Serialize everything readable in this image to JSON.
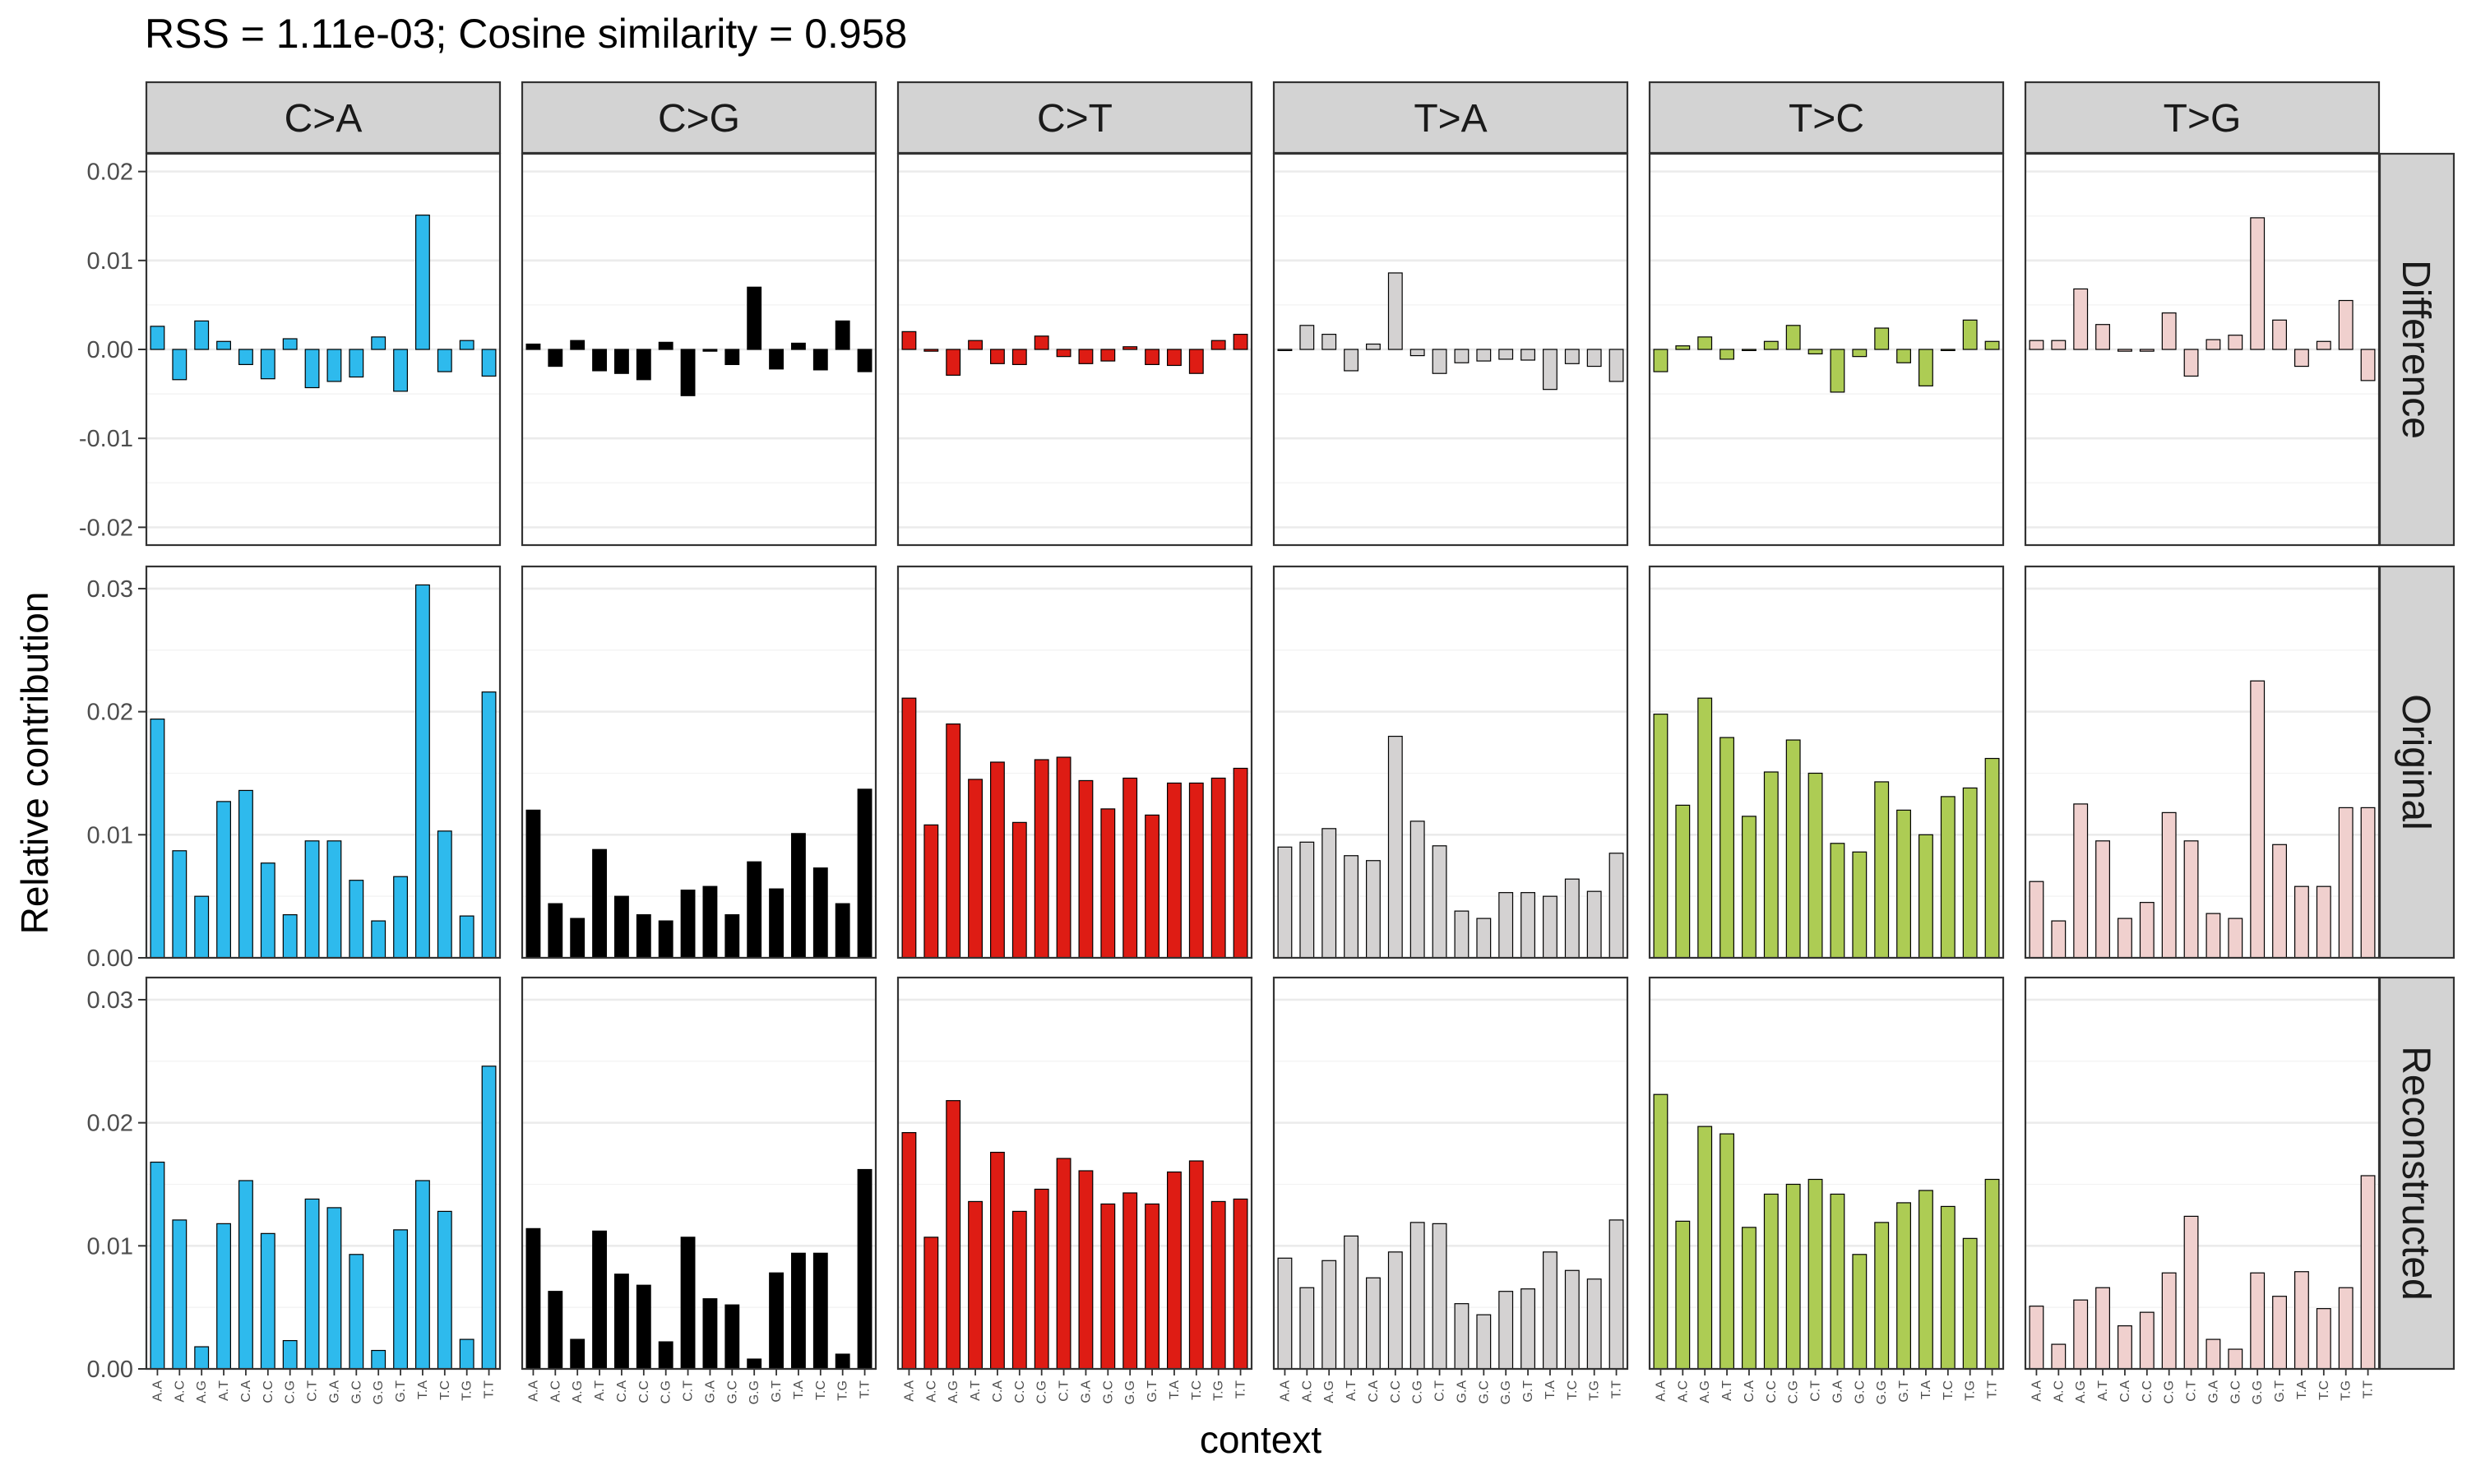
{
  "chart_data": {
    "type": "bar",
    "title": "RSS = 1.11e-03; Cosine similarity = 0.958",
    "xlabel": "context",
    "ylabel": "Relative contribution",
    "grid": true,
    "legend": "none",
    "contexts": [
      "A.A",
      "A.C",
      "A.G",
      "A.T",
      "C.A",
      "C.C",
      "C.G",
      "C.T",
      "G.A",
      "G.C",
      "G.G",
      "G.T",
      "T.A",
      "T.C",
      "T.G",
      "T.T"
    ],
    "substitutions": [
      {
        "label": "C>A",
        "color": "#2EBAED"
      },
      {
        "label": "C>G",
        "color": "#000000"
      },
      {
        "label": "C>T",
        "color": "#DE1C14"
      },
      {
        "label": "T>A",
        "color": "#D4D2D2"
      },
      {
        "label": "T>C",
        "color": "#ADCC54"
      },
      {
        "label": "T>G",
        "color": "#F0D0CE"
      }
    ],
    "rows": [
      {
        "label": "Difference",
        "ylim": [
          -0.022,
          0.022
        ],
        "ticks": [
          0.02,
          0.01,
          0.0,
          -0.01,
          -0.02
        ],
        "tick_labels": [
          "0.02",
          "0.01",
          "0.00",
          "-0.01",
          "-0.02"
        ],
        "values": [
          [
            0.0026,
            -0.0034,
            0.0032,
            0.0009,
            -0.0017,
            -0.0033,
            0.0012,
            -0.0043,
            -0.0036,
            -0.0031,
            0.0014,
            -0.0047,
            0.0151,
            -0.0025,
            0.001,
            -0.003
          ],
          [
            0.0006,
            -0.0019,
            0.001,
            -0.0024,
            -0.0027,
            -0.0034,
            0.0008,
            -0.0052,
            -0.0002,
            -0.0017,
            0.007,
            -0.0022,
            0.0007,
            -0.0023,
            0.0032,
            -0.0025
          ],
          [
            0.002,
            -0.0002,
            -0.0029,
            0.001,
            -0.0016,
            -0.0017,
            0.0015,
            -0.0008,
            -0.0016,
            -0.0013,
            0.0003,
            -0.0017,
            -0.0018,
            -0.0027,
            0.001,
            0.0017
          ],
          [
            0.0,
            0.0027,
            0.0017,
            -0.0024,
            0.0006,
            0.0086,
            -0.0007,
            -0.0027,
            -0.0015,
            -0.0013,
            -0.0011,
            -0.0012,
            -0.0045,
            -0.0016,
            -0.0019,
            -0.0036
          ],
          [
            -0.0025,
            0.0004,
            0.0014,
            -0.0011,
            0.0,
            0.0009,
            0.0027,
            -0.0005,
            -0.0048,
            -0.0008,
            0.0024,
            -0.0015,
            -0.0041,
            -0.0001,
            0.0033,
            0.0009
          ],
          [
            0.001,
            0.001,
            0.0068,
            0.0028,
            -0.0002,
            -0.0002,
            0.0041,
            -0.003,
            0.0011,
            0.0016,
            0.0148,
            0.0033,
            -0.0019,
            0.0009,
            0.0055,
            -0.0035
          ]
        ]
      },
      {
        "label": "Original",
        "ylim": [
          0,
          0.0318
        ],
        "ticks": [
          0.0,
          0.01,
          0.02,
          0.03
        ],
        "tick_labels": [
          "0.00",
          "0.01",
          "0.02",
          "0.03"
        ],
        "values": [
          [
            0.0194,
            0.0087,
            0.005,
            0.0127,
            0.0136,
            0.0077,
            0.0035,
            0.0095,
            0.0095,
            0.0063,
            0.003,
            0.0066,
            0.0303,
            0.0103,
            0.0034,
            0.0216
          ],
          [
            0.012,
            0.0044,
            0.0032,
            0.0088,
            0.005,
            0.0035,
            0.003,
            0.0055,
            0.0058,
            0.0035,
            0.0078,
            0.0056,
            0.0101,
            0.0073,
            0.0044,
            0.0137
          ],
          [
            0.0211,
            0.0108,
            0.019,
            0.0145,
            0.0159,
            0.011,
            0.0161,
            0.0163,
            0.0144,
            0.0121,
            0.0146,
            0.0116,
            0.0142,
            0.0142,
            0.0146,
            0.0154
          ],
          [
            0.009,
            0.0094,
            0.0105,
            0.0083,
            0.0079,
            0.018,
            0.0111,
            0.0091,
            0.0038,
            0.0032,
            0.0053,
            0.0053,
            0.005,
            0.0064,
            0.0054,
            0.0085
          ],
          [
            0.0198,
            0.0124,
            0.0211,
            0.0179,
            0.0115,
            0.0151,
            0.0177,
            0.015,
            0.0093,
            0.0086,
            0.0143,
            0.012,
            0.01,
            0.0131,
            0.0138,
            0.0162
          ],
          [
            0.0062,
            0.003,
            0.0125,
            0.0095,
            0.0032,
            0.0045,
            0.0118,
            0.0095,
            0.0036,
            0.0032,
            0.0225,
            0.0092,
            0.0058,
            0.0058,
            0.0122,
            0.0122
          ]
        ]
      },
      {
        "label": "Reconstructed",
        "ylim": [
          0,
          0.0318
        ],
        "ticks": [
          0.0,
          0.01,
          0.02,
          0.03
        ],
        "tick_labels": [
          "0.00",
          "0.01",
          "0.02",
          "0.03"
        ],
        "values": [
          [
            0.0168,
            0.0121,
            0.0018,
            0.0118,
            0.0153,
            0.011,
            0.0023,
            0.0138,
            0.0131,
            0.0093,
            0.0015,
            0.0113,
            0.0153,
            0.0128,
            0.0024,
            0.0246
          ],
          [
            0.0114,
            0.0063,
            0.0024,
            0.0112,
            0.0077,
            0.0068,
            0.0022,
            0.0107,
            0.0057,
            0.0052,
            0.0008,
            0.0078,
            0.0094,
            0.0094,
            0.0012,
            0.0162
          ],
          [
            0.0192,
            0.0107,
            0.0218,
            0.0136,
            0.0176,
            0.0128,
            0.0146,
            0.0171,
            0.0161,
            0.0134,
            0.0143,
            0.0134,
            0.016,
            0.0169,
            0.0136,
            0.0138
          ],
          [
            0.009,
            0.0066,
            0.0088,
            0.0108,
            0.0074,
            0.0095,
            0.0119,
            0.0118,
            0.0053,
            0.0044,
            0.0063,
            0.0065,
            0.0095,
            0.008,
            0.0073,
            0.0121
          ],
          [
            0.0223,
            0.012,
            0.0197,
            0.0191,
            0.0115,
            0.0142,
            0.015,
            0.0154,
            0.0142,
            0.0093,
            0.0119,
            0.0135,
            0.0145,
            0.0132,
            0.0106,
            0.0154
          ],
          [
            0.0051,
            0.002,
            0.0056,
            0.0066,
            0.0035,
            0.0046,
            0.0078,
            0.0124,
            0.0024,
            0.0016,
            0.0078,
            0.0059,
            0.0079,
            0.0049,
            0.0066,
            0.0157
          ]
        ]
      }
    ]
  }
}
